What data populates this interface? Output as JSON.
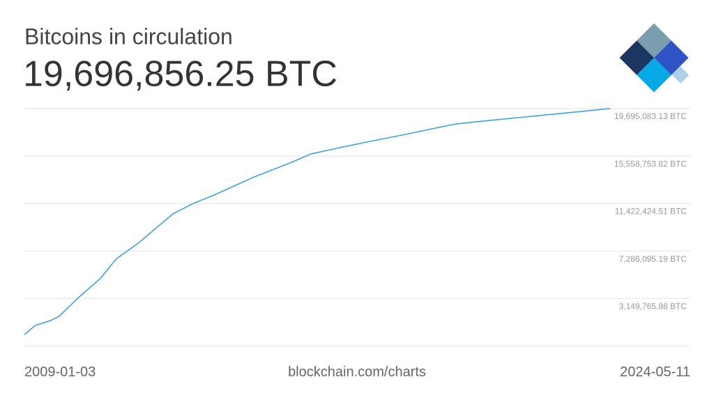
{
  "chart_data": {
    "type": "line",
    "title": "Bitcoins in circulation",
    "subtitle": "19,696,856.25 BTC",
    "source": "blockchain.com/charts",
    "x": [
      "2009-01-03",
      "2009-04-15",
      "2009-09-01",
      "2009-12-01",
      "2010-06-01",
      "2011-01-01",
      "2011-06-01",
      "2012-01-01",
      "2012-11-28",
      "2013-06-01",
      "2014-01-01",
      "2015-01-01",
      "2016-01-01",
      "2016-07-09",
      "2017-01-01",
      "2018-01-01",
      "2019-01-01",
      "2020-01-01",
      "2020-05-11",
      "2021-01-01",
      "2022-01-01",
      "2023-01-01",
      "2024-01-01",
      "2024-04-20",
      "2024-05-11"
    ],
    "values": [
      50,
      800000,
      1200000,
      1600000,
      3200000,
      4900000,
      6600000,
      8000000,
      10550000,
      11400000,
      12200000,
      13700000,
      15000000,
      15750000,
      16100000,
      16800000,
      17450000,
      18150000,
      18375000,
      18600000,
      18930000,
      19250000,
      19580000,
      19690000,
      19696856.25
    ],
    "color": "#3ba3d8",
    "xlim": [
      "2009-01-03",
      "2024-05-11"
    ],
    "xticks": [
      "2009-01-03",
      "2024-05-11"
    ],
    "ylim": [
      -986563.43,
      19695083.13
    ],
    "yticks": [
      {
        "value": 3149765.88,
        "label": "3,149,765.88 BTC"
      },
      {
        "value": 7286095.19,
        "label": "7,286,095.19 BTC"
      },
      {
        "value": 11422424.51,
        "label": "11,422,424.51 BTC"
      },
      {
        "value": 15558753.82,
        "label": "15,558,753.82 BTC"
      },
      {
        "value": 19695083.13,
        "label": "19,695,083.13 BTC"
      }
    ],
    "grid": true
  }
}
